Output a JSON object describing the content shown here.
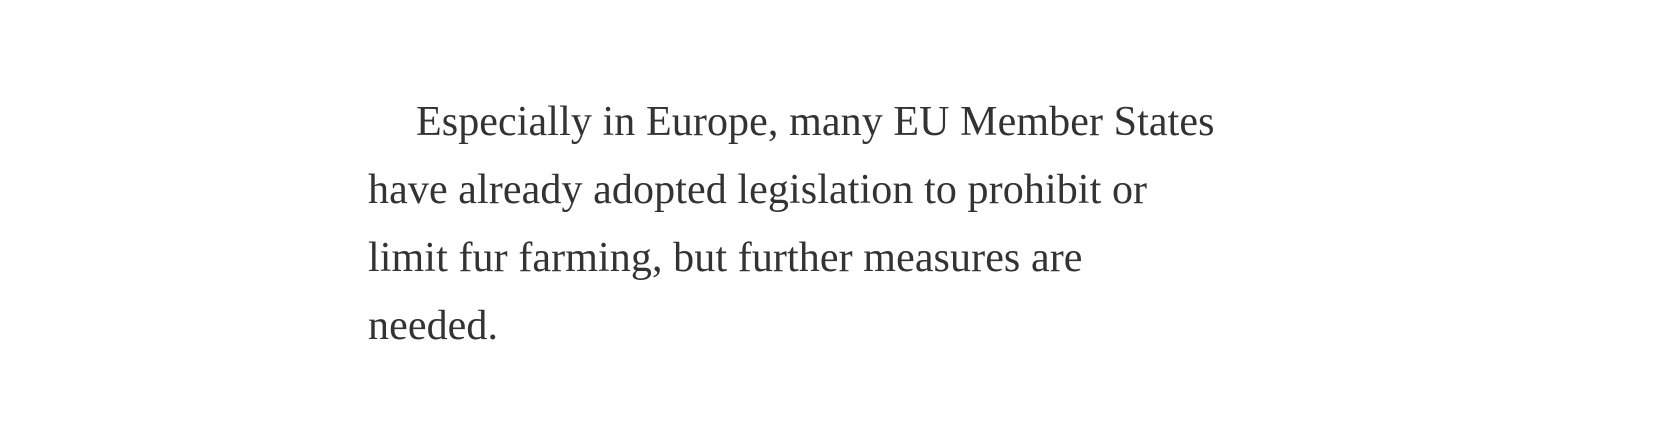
{
  "paragraph": {
    "lines": [
      "Especially in Europe, many EU Member States",
      "have already adopted legislation to prohibit or",
      "limit fur farming, but further measures are",
      "needed."
    ]
  }
}
